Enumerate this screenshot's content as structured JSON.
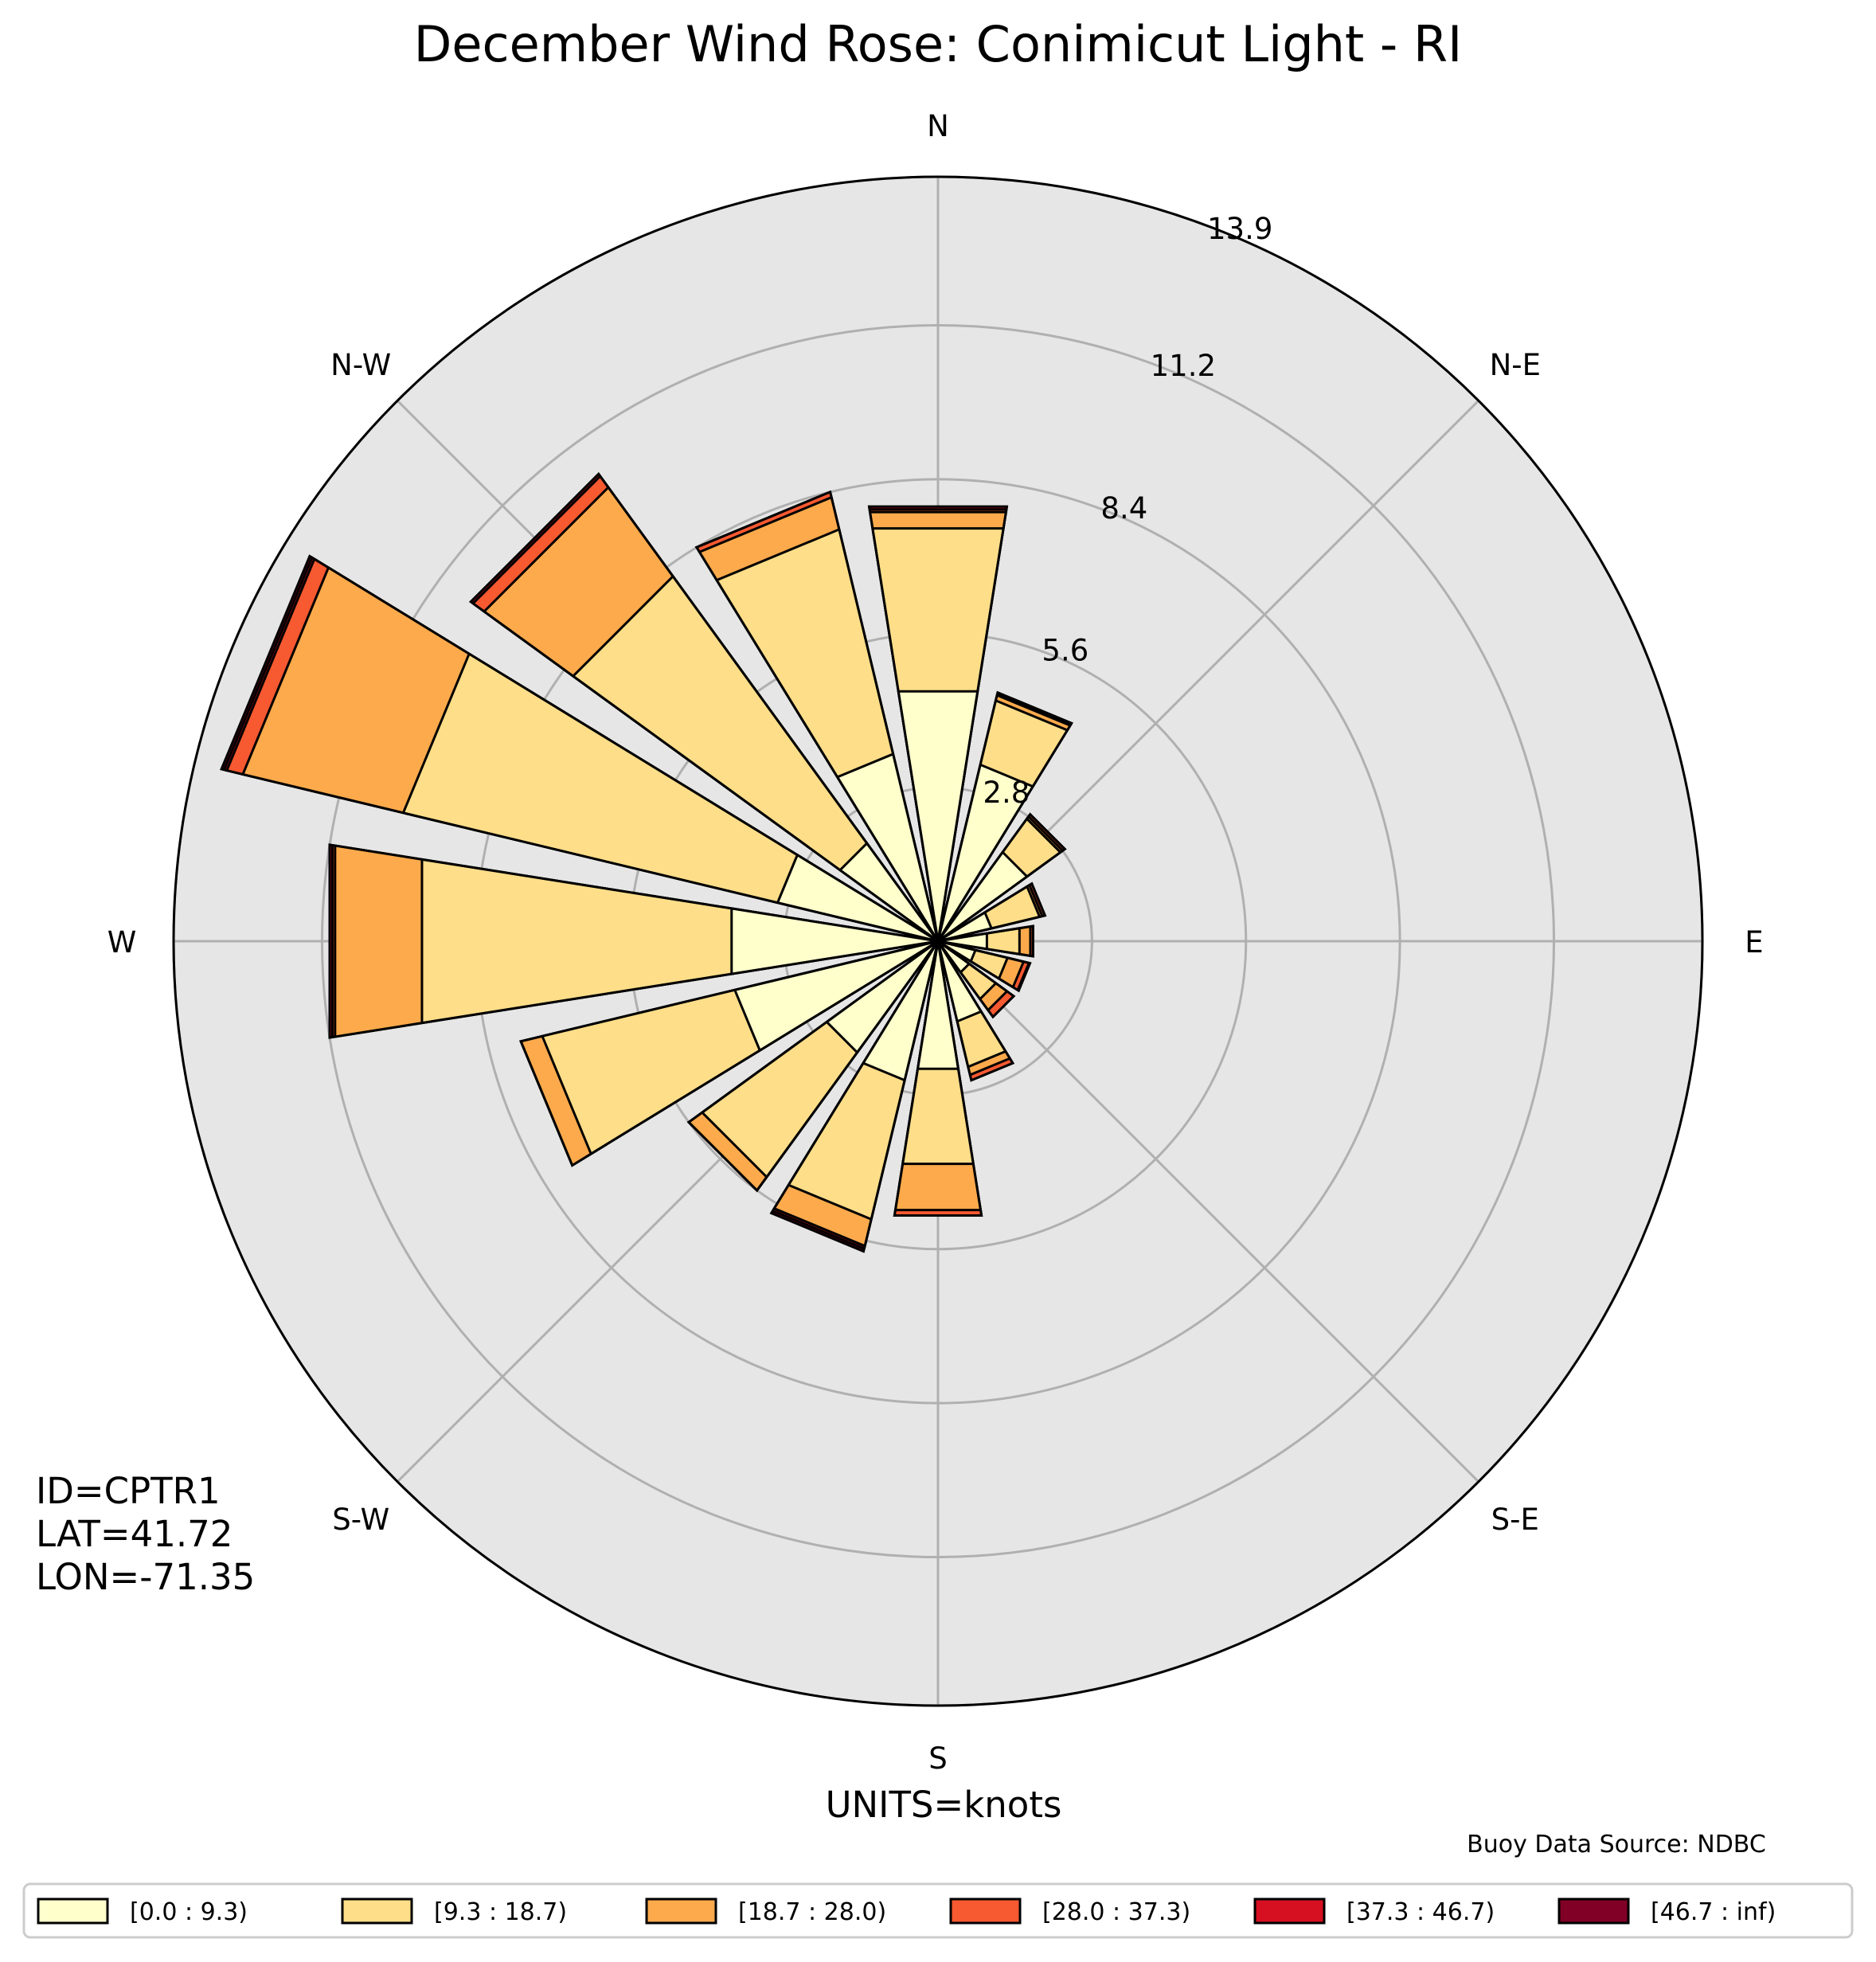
{
  "chart_data": {
    "type": "windrose",
    "title": "December Wind Rose: Conimicut Light - RI",
    "radial_ticks": [
      2.8,
      5.6,
      8.4,
      11.2,
      13.9
    ],
    "radial_max": 13.9,
    "direction_labels": [
      "N",
      "N-E",
      "E",
      "S-E",
      "S",
      "S-W",
      "W",
      "N-W"
    ],
    "bin_width_deg": 22.5,
    "speed_bins": [
      {
        "label": "[0.0 : 9.3)",
        "color": "#ffffcc"
      },
      {
        "label": "[9.3 : 18.7)",
        "color": "#fede89"
      },
      {
        "label": "[18.7 : 28.0)",
        "color": "#fcaa4c"
      },
      {
        "label": "[28.0 : 37.3)",
        "color": "#f75931"
      },
      {
        "label": "[37.3 : 46.7)",
        "color": "#d61021"
      },
      {
        "label": "[46.7 : inf)",
        "color": "#800026"
      }
    ],
    "directions": [
      {
        "deg": 0,
        "cumulative": [
          4.6,
          7.6,
          7.9,
          7.95,
          8.0,
          8.0
        ]
      },
      {
        "deg": 22.5,
        "cumulative": [
          3.3,
          4.5,
          4.6,
          4.6,
          4.62,
          4.65
        ]
      },
      {
        "deg": 45,
        "cumulative": [
          2.0,
          2.75,
          2.8,
          2.85,
          2.85,
          2.85
        ]
      },
      {
        "deg": 67.5,
        "cumulative": [
          1.0,
          1.9,
          1.95,
          2.0,
          2.0,
          2.0
        ]
      },
      {
        "deg": 90,
        "cumulative": [
          0.9,
          1.5,
          1.7,
          1.75,
          1.75,
          1.75
        ]
      },
      {
        "deg": 112.5,
        "cumulative": [
          0.7,
          1.3,
          1.6,
          1.7,
          1.72,
          1.72
        ]
      },
      {
        "deg": 135,
        "cumulative": [
          0.7,
          1.3,
          1.55,
          1.7,
          1.7,
          1.7
        ]
      },
      {
        "deg": 157.5,
        "cumulative": [
          1.5,
          2.35,
          2.5,
          2.6,
          2.6,
          2.6
        ]
      },
      {
        "deg": 180,
        "cumulative": [
          2.35,
          4.1,
          4.95,
          5.05,
          5.05,
          5.05
        ]
      },
      {
        "deg": 202.5,
        "cumulative": [
          2.6,
          5.2,
          5.7,
          5.7,
          5.75,
          5.8
        ]
      },
      {
        "deg": 225,
        "cumulative": [
          2.5,
          5.3,
          5.6,
          5.6,
          5.6,
          5.6
        ]
      },
      {
        "deg": 247.5,
        "cumulative": [
          3.8,
          7.4,
          7.8,
          7.8,
          7.8,
          7.8
        ]
      },
      {
        "deg": 270,
        "cumulative": [
          3.8,
          9.5,
          11.1,
          11.15,
          11.2,
          11.2
        ]
      },
      {
        "deg": 292.5,
        "cumulative": [
          3.0,
          10.0,
          13.0,
          13.3,
          13.35,
          13.4
        ]
      },
      {
        "deg": 315,
        "cumulative": [
          2.2,
          8.2,
          10.2,
          10.45,
          10.5,
          10.5
        ]
      },
      {
        "deg": 337.5,
        "cumulative": [
          3.5,
          7.7,
          8.3,
          8.4,
          8.4,
          8.4
        ]
      }
    ]
  },
  "station": {
    "id_text": "ID=CPTR1",
    "lat_text": "LAT=41.72",
    "lon_text": "LON=-71.35"
  },
  "units_text": "UNITS=knots",
  "source_text": "Buoy Data Source: NDBC",
  "background_color": "#e6e6e6",
  "grid_color": "#b0b0b0"
}
